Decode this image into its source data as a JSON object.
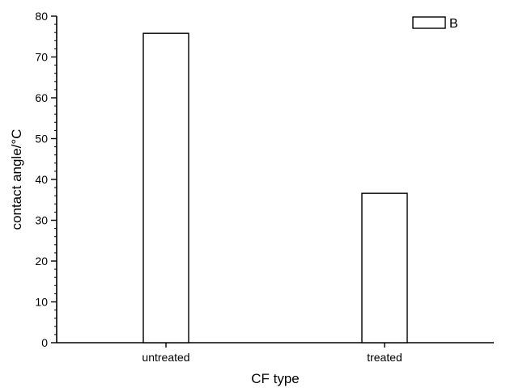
{
  "chart_data": {
    "type": "bar",
    "categories": [
      "untreated",
      "treated"
    ],
    "series": [
      {
        "name": "B",
        "values": [
          75.8,
          36.6
        ]
      }
    ],
    "xlabel": "CF type",
    "ylabel": "contact angle/°C",
    "ylim": [
      0,
      80
    ],
    "y_major_ticks": [
      0,
      10,
      20,
      30,
      40,
      50,
      60,
      70,
      80
    ],
    "y_minor_step": 2,
    "grid": false,
    "legend_position": "top-right",
    "colors": {
      "bar_fill": "#ffffff",
      "bar_stroke": "#000000",
      "axis": "#000000"
    }
  }
}
